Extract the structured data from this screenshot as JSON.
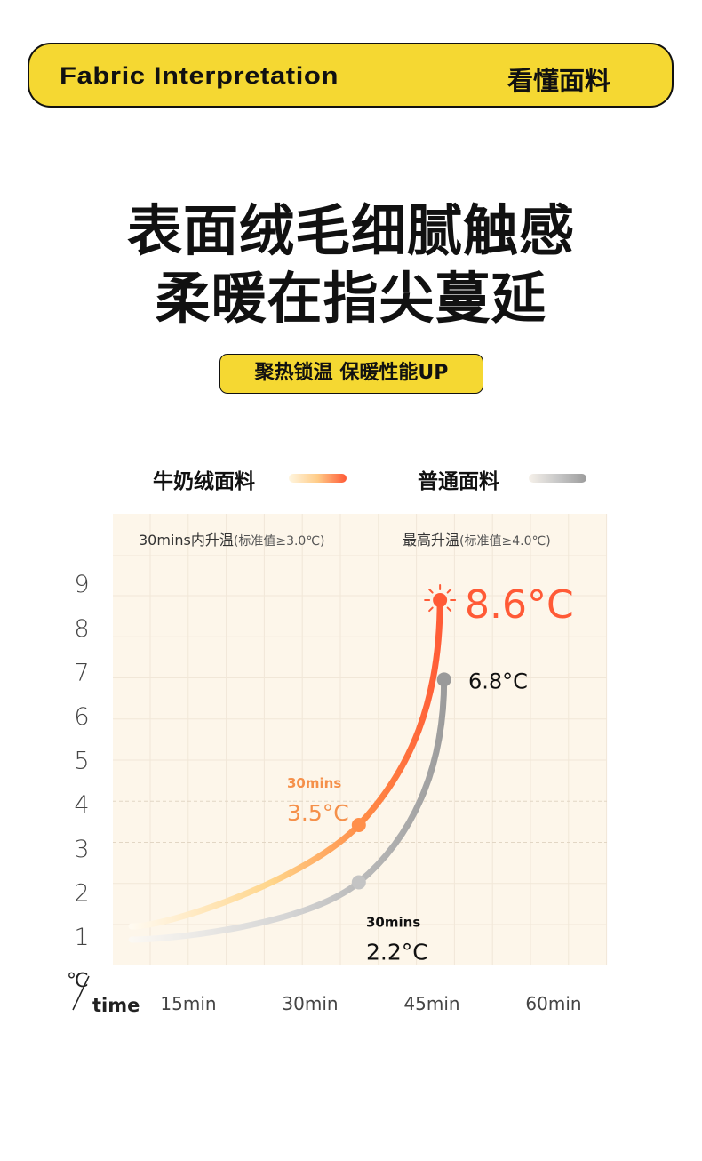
{
  "header": {
    "title_en": "Fabric Interpretation",
    "title_cn": "看懂面料"
  },
  "headline": {
    "line1": "表面绒毛细腻触感",
    "line2": "柔暖在指尖蔓延"
  },
  "badge": "聚热锁温 保暖性能UP",
  "colors": {
    "accent_yellow": "#f5d832",
    "milk_velvet": "#ff5a36",
    "milk_velvet_start": "#ffe9b0",
    "regular": "#9c9c9c",
    "chart_bg": "#fdf6ea"
  },
  "chart_data": {
    "type": "line",
    "legend": [
      {
        "name": "牛奶绒面料"
      },
      {
        "name": "普通面料"
      }
    ],
    "legend_placement": "top",
    "column_headers": [
      {
        "main": "30mins内升温",
        "note": "(标准值≥3.0℃)"
      },
      {
        "main": "最高升温",
        "note": "(标准值≥4.0℃)"
      }
    ],
    "y_ticks": [
      "9",
      "8",
      "7",
      "6",
      "5",
      "4",
      "3",
      "2",
      "1"
    ],
    "ylim": [
      1,
      9
    ],
    "x_ticks": [
      "15min",
      "30min",
      "45min",
      "60min"
    ],
    "x_tick_values": [
      15,
      30,
      45,
      60
    ],
    "axis_unit_y": "℃",
    "axis_unit_x": "time",
    "grid": true,
    "series": [
      {
        "name": "牛奶绒面料",
        "points": [
          [
            8,
            1.2
          ],
          [
            36,
            3.5
          ],
          [
            46,
            8.6
          ]
        ],
        "annotations": [
          {
            "sub": "30mins",
            "value": "3.5°C"
          },
          {
            "value": "8.6°C"
          }
        ]
      },
      {
        "name": "普通面料",
        "points": [
          [
            8,
            0.9
          ],
          [
            36,
            2.2
          ],
          [
            46.5,
            6.8
          ]
        ],
        "annotations": [
          {
            "sub": "30mins",
            "value": "2.2°C"
          },
          {
            "value": "6.8°C"
          }
        ]
      }
    ]
  }
}
